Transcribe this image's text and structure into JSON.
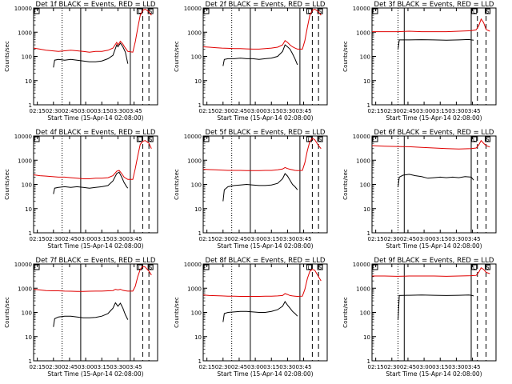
{
  "figure": {
    "xlabel": "Start Time (15-Apr-14 02:08:00)",
    "ylabel": "Counts/sec",
    "x_ticks": [
      "02:15",
      "02:30",
      "02:45",
      "03:00",
      "03:15",
      "03:30",
      "03:45"
    ],
    "y_ticks": [
      "1",
      "10",
      "100",
      "1000",
      "10000"
    ],
    "panel_titles": [
      "Det 1f BLACK = Events, RED = LLD",
      "Det 2f BLACK = Events, RED = LLD",
      "Det 3f BLACK = Events, RED = LLD",
      "Det 4f BLACK = Events, RED = LLD",
      "Det 5f BLACK = Events, RED = LLD",
      "Det 6f BLACK = Events, RED = LLD",
      "Det 7f BLACK = Events, RED = LLD",
      "Det 8f BLACK = Events, RED = LLD",
      "Det 9f BLACK = Events, RED = LLD"
    ],
    "marker_labels": [
      "L",
      "S"
    ],
    "colors": {
      "events": "#000000",
      "lld": "#e00000"
    }
  },
  "chart_data": [
    {
      "type": "line",
      "title": "Det 1f BLACK = Events, RED = LLD",
      "xlabel": "Start Time (15-Apr-14 02:08:00)",
      "ylabel": "Counts/sec",
      "x_unit": "minutes after 02:08",
      "xlim": [
        0,
        100
      ],
      "ylim": [
        1,
        10000
      ],
      "y_scale": "log",
      "series": [
        {
          "color": "#000000",
          "x": [
            16,
            17,
            20,
            25,
            30,
            35,
            40,
            45,
            50,
            55,
            60,
            64,
            67,
            68,
            70,
            72,
            74,
            76
          ],
          "y": [
            35,
            70,
            75,
            70,
            75,
            70,
            65,
            60,
            60,
            65,
            80,
            110,
            300,
            250,
            350,
            250,
            150,
            50
          ]
        },
        {
          "color": "#e00000",
          "x": [
            0,
            5,
            10,
            15,
            20,
            25,
            30,
            35,
            40,
            45,
            50,
            55,
            60,
            64,
            67,
            68,
            70,
            72,
            74,
            76,
            80,
            82,
            84,
            86,
            88,
            90,
            93,
            95
          ],
          "y": [
            220,
            200,
            180,
            170,
            160,
            170,
            180,
            170,
            160,
            150,
            160,
            160,
            180,
            220,
            380,
            300,
            420,
            320,
            220,
            160,
            150,
            400,
            1500,
            5000,
            8000,
            9000,
            7000,
            5000
          ]
        }
      ],
      "markers": {
        "dotted": [
          23
        ],
        "solid": [
          38,
          78
        ],
        "dashed": [
          0,
          88,
          93
        ]
      }
    },
    {
      "type": "line",
      "title": "Det 2f BLACK = Events, RED = LLD",
      "xlabel": "Start Time (15-Apr-14 02:08:00)",
      "ylabel": "Counts/sec",
      "x_unit": "minutes after 02:08",
      "xlim": [
        0,
        100
      ],
      "ylim": [
        1,
        10000
      ],
      "y_scale": "log",
      "series": [
        {
          "color": "#000000",
          "x": [
            16,
            17,
            20,
            25,
            30,
            35,
            40,
            45,
            50,
            55,
            60,
            64,
            66,
            68,
            70,
            72,
            74,
            76
          ],
          "y": [
            40,
            75,
            80,
            80,
            85,
            80,
            80,
            75,
            80,
            85,
            100,
            160,
            300,
            250,
            200,
            130,
            80,
            45
          ]
        },
        {
          "color": "#e00000",
          "x": [
            0,
            5,
            10,
            15,
            20,
            25,
            30,
            35,
            40,
            45,
            50,
            55,
            60,
            64,
            66,
            68,
            70,
            72,
            74,
            76,
            80,
            82,
            84,
            86,
            88,
            90,
            93,
            95
          ],
          "y": [
            250,
            240,
            230,
            220,
            215,
            210,
            210,
            205,
            200,
            200,
            210,
            220,
            240,
            300,
            450,
            380,
            300,
            250,
            220,
            200,
            200,
            450,
            1600,
            5000,
            8000,
            9000,
            7000,
            5000
          ]
        }
      ],
      "markers": {
        "dotted": [
          23
        ],
        "solid": [
          38,
          78
        ],
        "dashed": [
          0,
          88,
          93
        ]
      }
    },
    {
      "type": "line",
      "title": "Det 3f BLACK = Events, RED = LLD",
      "xlabel": "Start Time (15-Apr-14 02:08:00)",
      "ylabel": "Counts/sec",
      "x_unit": "minutes after 02:08",
      "xlim": [
        0,
        100
      ],
      "ylim": [
        1,
        10000
      ],
      "y_scale": "log",
      "series": [
        {
          "color": "#000000",
          "x": [
            21,
            22,
            30,
            40,
            50,
            60,
            70,
            78,
            80,
            82
          ],
          "y": [
            200,
            480,
            480,
            490,
            480,
            470,
            480,
            500,
            480,
            470
          ]
        },
        {
          "color": "#e00000",
          "x": [
            0,
            10,
            20,
            30,
            40,
            50,
            60,
            70,
            80,
            84,
            86,
            88,
            90,
            92,
            95
          ],
          "y": [
            1050,
            1050,
            1050,
            1100,
            1050,
            1050,
            1050,
            1100,
            1150,
            1250,
            1800,
            3500,
            2500,
            1300,
            1100
          ]
        }
      ],
      "markers": {
        "dotted": [
          21
        ],
        "solid": [
          26,
          80
        ],
        "dashed": [
          0,
          85,
          92
        ]
      }
    },
    {
      "type": "line",
      "title": "Det 4f BLACK = Events, RED = LLD",
      "xlabel": "Start Time (15-Apr-14 02:08:00)",
      "ylabel": "Counts/sec",
      "x_unit": "minutes after 02:08",
      "xlim": [
        0,
        100
      ],
      "ylim": [
        1,
        10000
      ],
      "y_scale": "log",
      "series": [
        {
          "color": "#000000",
          "x": [
            16,
            17,
            20,
            25,
            30,
            35,
            40,
            45,
            50,
            55,
            60,
            64,
            67,
            69,
            71,
            73,
            75,
            76
          ],
          "y": [
            40,
            70,
            75,
            80,
            75,
            80,
            75,
            70,
            75,
            80,
            90,
            140,
            280,
            320,
            200,
            120,
            80,
            70
          ]
        },
        {
          "color": "#e00000",
          "x": [
            0,
            5,
            10,
            15,
            20,
            25,
            30,
            35,
            40,
            45,
            50,
            55,
            60,
            64,
            67,
            69,
            71,
            73,
            75,
            76,
            80,
            82,
            84,
            86,
            88,
            90,
            93,
            95
          ],
          "y": [
            250,
            230,
            220,
            210,
            200,
            200,
            190,
            180,
            170,
            170,
            180,
            180,
            190,
            230,
            350,
            380,
            280,
            200,
            170,
            160,
            160,
            450,
            1500,
            4500,
            6000,
            6500,
            5000,
            3000
          ]
        }
      ],
      "markers": {
        "dotted": [
          23
        ],
        "solid": [
          38,
          78
        ],
        "dashed": [
          0,
          88,
          93
        ]
      }
    },
    {
      "type": "line",
      "title": "Det 5f BLACK = Events, RED = LLD",
      "xlabel": "Start Time (15-Apr-14 02:08:00)",
      "ylabel": "Counts/sec",
      "x_unit": "minutes after 02:08",
      "xlim": [
        0,
        100
      ],
      "ylim": [
        1,
        10000
      ],
      "y_scale": "log",
      "series": [
        {
          "color": "#000000",
          "x": [
            16,
            17,
            20,
            25,
            30,
            35,
            40,
            45,
            50,
            55,
            60,
            64,
            66,
            68,
            70,
            72,
            74,
            76
          ],
          "y": [
            20,
            60,
            80,
            90,
            95,
            100,
            95,
            90,
            90,
            95,
            110,
            170,
            280,
            220,
            150,
            100,
            80,
            60
          ]
        },
        {
          "color": "#e00000",
          "x": [
            0,
            5,
            10,
            15,
            20,
            25,
            30,
            35,
            40,
            45,
            50,
            55,
            60,
            64,
            66,
            68,
            70,
            72,
            74,
            76,
            80,
            82,
            84,
            86,
            88,
            90,
            93,
            95
          ],
          "y": [
            420,
            410,
            400,
            390,
            380,
            380,
            380,
            370,
            370,
            370,
            380,
            380,
            400,
            430,
            500,
            450,
            420,
            400,
            380,
            370,
            380,
            800,
            2500,
            6000,
            8000,
            7000,
            4000,
            3000
          ]
        }
      ],
      "markers": {
        "dotted": [
          23
        ],
        "solid": [
          38,
          78
        ],
        "dashed": [
          0,
          88,
          93
        ]
      }
    },
    {
      "type": "line",
      "title": "Det 6f BLACK = Events, RED = LLD",
      "xlabel": "Start Time (15-Apr-14 02:08:00)",
      "ylabel": "Counts/sec",
      "x_unit": "minutes after 02:08",
      "xlim": [
        0,
        100
      ],
      "ylim": [
        1,
        10000
      ],
      "y_scale": "log",
      "series": [
        {
          "color": "#000000",
          "x": [
            21,
            22,
            25,
            30,
            35,
            40,
            45,
            50,
            55,
            60,
            65,
            70,
            75,
            80,
            82
          ],
          "y": [
            80,
            200,
            240,
            260,
            230,
            210,
            180,
            190,
            200,
            190,
            200,
            190,
            210,
            200,
            150
          ]
        },
        {
          "color": "#e00000",
          "x": [
            0,
            10,
            20,
            30,
            40,
            50,
            60,
            70,
            80,
            84,
            86,
            88,
            90,
            92,
            95
          ],
          "y": [
            4000,
            3800,
            3700,
            3600,
            3400,
            3200,
            3000,
            2900,
            3000,
            3200,
            4200,
            6500,
            5000,
            4000,
            3500
          ]
        }
      ],
      "markers": {
        "dotted": [
          21
        ],
        "solid": [
          26,
          80
        ],
        "dashed": [
          0,
          85,
          92
        ]
      }
    },
    {
      "type": "line",
      "title": "Det 7f BLACK = Events, RED = LLD",
      "xlabel": "Start Time (15-Apr-14 02:08:00)",
      "ylabel": "Counts/sec",
      "x_unit": "minutes after 02:08",
      "xlim": [
        0,
        100
      ],
      "ylim": [
        1,
        10000
      ],
      "y_scale": "log",
      "series": [
        {
          "color": "#000000",
          "x": [
            16,
            17,
            20,
            25,
            30,
            35,
            40,
            45,
            50,
            55,
            60,
            64,
            66,
            68,
            70,
            72,
            74,
            76
          ],
          "y": [
            25,
            55,
            65,
            70,
            70,
            65,
            60,
            60,
            62,
            70,
            90,
            150,
            250,
            180,
            240,
            150,
            80,
            50
          ]
        },
        {
          "color": "#e00000",
          "x": [
            0,
            5,
            10,
            15,
            20,
            25,
            30,
            35,
            40,
            45,
            50,
            55,
            60,
            64,
            66,
            68,
            70,
            72,
            74,
            76,
            80,
            82,
            84,
            86,
            88,
            90,
            93,
            95
          ],
          "y": [
            900,
            850,
            800,
            780,
            780,
            760,
            750,
            740,
            740,
            750,
            760,
            760,
            780,
            800,
            900,
            850,
            900,
            820,
            780,
            760,
            760,
            1200,
            3000,
            6000,
            8000,
            7500,
            5000,
            3500
          ]
        }
      ],
      "markers": {
        "dotted": [
          23
        ],
        "solid": [
          38,
          78
        ],
        "dashed": [
          0,
          88,
          93
        ]
      }
    },
    {
      "type": "line",
      "title": "Det 8f BLACK = Events, RED = LLD",
      "xlabel": "Start Time (15-Apr-14 02:08:00)",
      "ylabel": "Counts/sec",
      "x_unit": "minutes after 02:08",
      "xlim": [
        0,
        100
      ],
      "ylim": [
        1,
        10000
      ],
      "y_scale": "log",
      "series": [
        {
          "color": "#000000",
          "x": [
            16,
            17,
            20,
            25,
            30,
            35,
            40,
            45,
            50,
            55,
            60,
            64,
            66,
            68,
            70,
            72,
            74,
            76
          ],
          "y": [
            40,
            90,
            100,
            105,
            110,
            110,
            105,
            100,
            100,
            110,
            130,
            180,
            280,
            200,
            150,
            110,
            90,
            70
          ]
        },
        {
          "color": "#e00000",
          "x": [
            0,
            5,
            10,
            15,
            20,
            25,
            30,
            35,
            40,
            45,
            50,
            55,
            60,
            64,
            66,
            68,
            70,
            72,
            74,
            76,
            80,
            82,
            84,
            86,
            88,
            90,
            93,
            95
          ],
          "y": [
            520,
            500,
            490,
            480,
            470,
            470,
            460,
            460,
            460,
            460,
            470,
            470,
            480,
            500,
            600,
            550,
            500,
            480,
            470,
            460,
            470,
            900,
            2500,
            5000,
            6000,
            5500,
            3000,
            2000
          ]
        }
      ],
      "markers": {
        "dotted": [
          23
        ],
        "solid": [
          38,
          78
        ],
        "dashed": [
          0,
          88,
          93
        ]
      }
    },
    {
      "type": "line",
      "title": "Det 9f BLACK = Events, RED = LLD",
      "xlabel": "Start Time (15-Apr-14 02:08:00)",
      "ylabel": "Counts/sec",
      "x_unit": "minutes after 02:08",
      "xlim": [
        0,
        100
      ],
      "ylim": [
        1,
        10000
      ],
      "y_scale": "log",
      "series": [
        {
          "color": "#000000",
          "x": [
            21,
            22,
            30,
            40,
            50,
            60,
            70,
            78,
            80,
            82
          ],
          "y": [
            50,
            500,
            510,
            520,
            510,
            500,
            510,
            520,
            510,
            480
          ]
        },
        {
          "color": "#e00000",
          "x": [
            0,
            10,
            20,
            30,
            40,
            50,
            60,
            70,
            80,
            84,
            86,
            88,
            90,
            92,
            95
          ],
          "y": [
            3200,
            3200,
            3100,
            3200,
            3200,
            3200,
            3100,
            3200,
            3300,
            3400,
            4500,
            7000,
            6000,
            4500,
            4000
          ]
        }
      ],
      "markers": {
        "dotted": [
          21
        ],
        "solid": [
          26,
          80
        ],
        "dashed": [
          0,
          85,
          92
        ]
      }
    }
  ]
}
